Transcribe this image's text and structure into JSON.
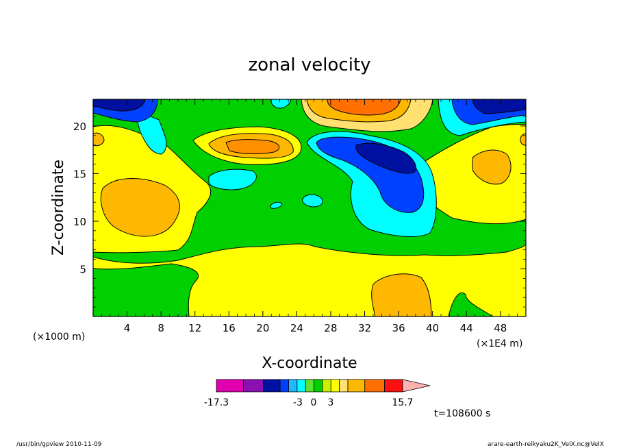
{
  "chart_data": {
    "type": "contour",
    "title": "zonal velocity",
    "xlabel": "X-coordinate",
    "ylabel": "Z-coordinate",
    "x_unit_left": "(×1000 m)",
    "x_unit_right": "(×1E4 m)",
    "xlim": [
      0,
      51
    ],
    "ylim": [
      0,
      22.8
    ],
    "xticks": [
      "4",
      "8",
      "12",
      "16",
      "20",
      "24",
      "28",
      "32",
      "36",
      "40",
      "44",
      "48"
    ],
    "yticks": [
      "5",
      "10",
      "15",
      "20"
    ],
    "colorbar": {
      "min_label": "-17.3",
      "labels": [
        "-3",
        "0",
        "3"
      ],
      "max_label": "15.7",
      "levels": [
        -17.3,
        -12.5,
        -9,
        -6,
        -4.5,
        -3,
        -1.5,
        0,
        1.5,
        3,
        4.5,
        6,
        9,
        12.5,
        15.7
      ],
      "colors": [
        "#e000b0",
        "#8a10b0",
        "#0010a0",
        "#0040ff",
        "#20b8ff",
        "#00ffff",
        "#60e030",
        "#00d000",
        "#c8f000",
        "#ffff00",
        "#ffe070",
        "#ffb800",
        "#ff7000",
        "#ff1010",
        "#ff8080",
        "#ffb0b0"
      ]
    },
    "time_label": "t=108600 s",
    "regions": [
      {
        "level": "green",
        "value": 0.5,
        "x": [
          0,
          51
        ],
        "y": [
          0,
          22.8
        ]
      },
      {
        "level": "yellow",
        "value": 2.0,
        "x": [
          0,
          11
        ],
        "y": [
          6.5,
          20.5
        ]
      },
      {
        "level": "yellow",
        "value": 2.0,
        "x": [
          12,
          51
        ],
        "y": [
          0,
          6.5
        ]
      },
      {
        "level": "orange-yellow",
        "value": 4.0,
        "x": [
          1,
          10
        ],
        "y": [
          8.5,
          14.5
        ]
      },
      {
        "level": "orange-yellow",
        "value": 4.0,
        "x": [
          33,
          39
        ],
        "y": [
          0,
          4.5
        ]
      },
      {
        "level": "orange",
        "value": 6.5,
        "x": [
          13,
          24
        ],
        "y": [
          16,
          20
        ]
      },
      {
        "level": "red-orange",
        "value": 10,
        "x": [
          25,
          39
        ],
        "y": [
          20,
          22.8
        ]
      },
      {
        "level": "light-blue",
        "value": -3.5,
        "x": [
          26,
          40
        ],
        "y": [
          9,
          20
        ]
      },
      {
        "level": "dark-blue",
        "value": -9,
        "x": [
          31,
          38
        ],
        "y": [
          15,
          18.5
        ]
      },
      {
        "level": "cyan",
        "value": -2.5,
        "x": [
          14,
          20
        ],
        "y": [
          13,
          16
        ]
      },
      {
        "level": "navy",
        "value": -7,
        "x": [
          0,
          6
        ],
        "y": [
          21,
          22.8
        ]
      },
      {
        "level": "navy",
        "value": -7,
        "x": [
          44,
          51
        ],
        "y": [
          20,
          22.8
        ]
      }
    ]
  },
  "footer": {
    "left": "/usr/bin/gpview  2010-11-09",
    "right": "arare-earth-reikyaku2K_VelX.nc@VelX"
  }
}
